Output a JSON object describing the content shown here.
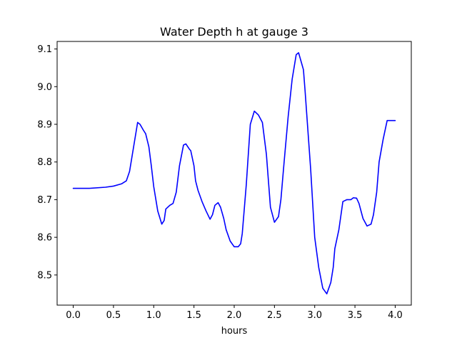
{
  "chart_data": {
    "type": "line",
    "title": "Water Depth h at gauge 3",
    "xlabel": "hours",
    "ylabel": "",
    "xlim": [
      -0.2,
      4.2
    ],
    "ylim": [
      8.42,
      9.12
    ],
    "xticks": [
      0.0,
      0.5,
      1.0,
      1.5,
      2.0,
      2.5,
      3.0,
      3.5,
      4.0
    ],
    "xtick_labels": [
      "0.0",
      "0.5",
      "1.0",
      "1.5",
      "2.0",
      "2.5",
      "3.0",
      "3.5",
      "4.0"
    ],
    "yticks": [
      8.5,
      8.6,
      8.7,
      8.8,
      8.9,
      9.0,
      9.1
    ],
    "ytick_labels": [
      "8.5",
      "8.6",
      "8.7",
      "8.8",
      "8.9",
      "9.0",
      "9.1"
    ],
    "grid": false,
    "series": [
      {
        "color": "#0000ff",
        "x": [
          0.0,
          0.2,
          0.4,
          0.5,
          0.6,
          0.66,
          0.7,
          0.75,
          0.8,
          0.83,
          0.87,
          0.9,
          0.94,
          0.97,
          1.0,
          1.05,
          1.1,
          1.13,
          1.15,
          1.2,
          1.24,
          1.28,
          1.32,
          1.37,
          1.4,
          1.44,
          1.46,
          1.5,
          1.52,
          1.55,
          1.6,
          1.65,
          1.7,
          1.73,
          1.76,
          1.8,
          1.83,
          1.87,
          1.9,
          1.95,
          2.0,
          2.05,
          2.08,
          2.1,
          2.15,
          2.2,
          2.25,
          2.3,
          2.35,
          2.4,
          2.45,
          2.5,
          2.55,
          2.58,
          2.62,
          2.67,
          2.72,
          2.77,
          2.8,
          2.84,
          2.86,
          2.88,
          2.9,
          2.95,
          3.0,
          3.05,
          3.1,
          3.15,
          3.2,
          3.23,
          3.25,
          3.3,
          3.35,
          3.4,
          3.45,
          3.48,
          3.52,
          3.55,
          3.6,
          3.65,
          3.7,
          3.73,
          3.77,
          3.8,
          3.85,
          3.9,
          3.95,
          4.0
        ],
        "y": [
          8.73,
          8.73,
          8.733,
          8.736,
          8.742,
          8.75,
          8.775,
          8.84,
          8.905,
          8.9,
          8.885,
          8.875,
          8.84,
          8.79,
          8.735,
          8.67,
          8.635,
          8.645,
          8.675,
          8.685,
          8.69,
          8.72,
          8.79,
          8.845,
          8.848,
          8.835,
          8.83,
          8.79,
          8.75,
          8.725,
          8.695,
          8.67,
          8.648,
          8.66,
          8.685,
          8.692,
          8.68,
          8.65,
          8.62,
          8.59,
          8.575,
          8.575,
          8.583,
          8.61,
          8.74,
          8.9,
          8.935,
          8.925,
          8.905,
          8.82,
          8.68,
          8.64,
          8.655,
          8.7,
          8.8,
          8.92,
          9.02,
          9.085,
          9.09,
          9.06,
          9.045,
          8.99,
          8.93,
          8.78,
          8.6,
          8.52,
          8.465,
          8.45,
          8.48,
          8.52,
          8.57,
          8.62,
          8.695,
          8.7,
          8.7,
          8.705,
          8.704,
          8.69,
          8.65,
          8.63,
          8.635,
          8.66,
          8.72,
          8.8,
          8.86,
          8.91,
          8.91,
          8.91
        ]
      }
    ]
  }
}
